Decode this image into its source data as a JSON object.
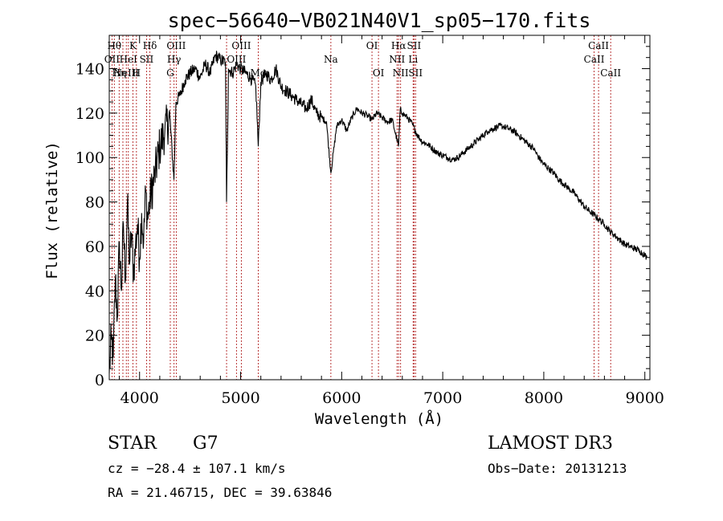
{
  "chart_data": {
    "type": "line",
    "title": "spec−56640−VB021N40V1_sp05−170.fits",
    "xlabel": "Wavelength (Å)",
    "ylabel": "Flux (relative)",
    "xlim": [
      3700,
      9050
    ],
    "ylim": [
      0,
      155
    ],
    "xticks": [
      {
        "value": 4000,
        "label": "4000"
      },
      {
        "value": 5000,
        "label": "5000"
      },
      {
        "value": 6000,
        "label": "6000"
      },
      {
        "value": 7000,
        "label": "7000"
      },
      {
        "value": 8000,
        "label": "8000"
      },
      {
        "value": 9000,
        "label": "9000"
      }
    ],
    "yticks": [
      {
        "value": 0,
        "label": "0"
      },
      {
        "value": 20,
        "label": "20"
      },
      {
        "value": 40,
        "label": "40"
      },
      {
        "value": 60,
        "label": "60"
      },
      {
        "value": 80,
        "label": "80"
      },
      {
        "value": 100,
        "label": "100"
      },
      {
        "value": 120,
        "label": "120"
      },
      {
        "value": 140,
        "label": "140"
      }
    ],
    "series": [
      {
        "name": "spectrum",
        "color": "#000000",
        "x": [
          3700,
          3720,
          3740,
          3760,
          3780,
          3800,
          3820,
          3840,
          3860,
          3880,
          3900,
          3920,
          3940,
          3960,
          3980,
          4000,
          4020,
          4040,
          4060,
          4080,
          4100,
          4150,
          4200,
          4250,
          4300,
          4340,
          4360,
          4400,
          4450,
          4500,
          4550,
          4600,
          4650,
          4700,
          4750,
          4800,
          4850,
          4861,
          4880,
          4920,
          4960,
          5000,
          5050,
          5100,
          5150,
          5175,
          5200,
          5250,
          5300,
          5350,
          5400,
          5450,
          5500,
          5550,
          5600,
          5650,
          5700,
          5750,
          5800,
          5850,
          5893,
          5950,
          6000,
          6050,
          6100,
          6150,
          6200,
          6250,
          6300,
          6350,
          6400,
          6450,
          6500,
          6563,
          6580,
          6600,
          6650,
          6700,
          6750,
          6800,
          6850,
          6900,
          6950,
          7000,
          7050,
          7100,
          7150,
          7200,
          7250,
          7300,
          7350,
          7400,
          7450,
          7500,
          7550,
          7600,
          7650,
          7700,
          7750,
          7800,
          7850,
          7900,
          7950,
          8000,
          8050,
          8100,
          8150,
          8200,
          8250,
          8300,
          8350,
          8400,
          8450,
          8500,
          8550,
          8600,
          8650,
          8700,
          8750,
          8800,
          8850,
          8900,
          8950,
          9000,
          9020
        ],
        "y": [
          3,
          18,
          10,
          45,
          28,
          62,
          40,
          70,
          45,
          80,
          52,
          66,
          48,
          60,
          70,
          55,
          75,
          62,
          85,
          72,
          80,
          92,
          105,
          112,
          118,
          90,
          125,
          128,
          135,
          138,
          140,
          136,
          142,
          138,
          146,
          144,
          143,
          80,
          140,
          138,
          142,
          140,
          138,
          136,
          132,
          105,
          134,
          138,
          135,
          140,
          132,
          130,
          128,
          126,
          124,
          122,
          126,
          120,
          118,
          116,
          93,
          114,
          117,
          112,
          118,
          122,
          120,
          119,
          117,
          120,
          118,
          116,
          117,
          105,
          122,
          120,
          118,
          115,
          110,
          107,
          106,
          104,
          102,
          101,
          100,
          99,
          100,
          102,
          104,
          106,
          108,
          110,
          112,
          113,
          114,
          114,
          113,
          112,
          110,
          108,
          106,
          104,
          100,
          97,
          95,
          93,
          90,
          88,
          86,
          84,
          81,
          78,
          76,
          74,
          72,
          70,
          67,
          65,
          63,
          61,
          60,
          59,
          58,
          56,
          55
        ]
      }
    ],
    "emission_lines": [
      {
        "wave": 3727,
        "label": "OII",
        "row": 1
      },
      {
        "wave": 3750,
        "label": "Hθ",
        "row": 0
      },
      {
        "wave": 3798,
        "label": "Hη",
        "row": 2
      },
      {
        "wave": 3835,
        "label": "",
        "row": 2
      },
      {
        "wave": 3869,
        "label": "NeIII",
        "row": 2
      },
      {
        "wave": 3889,
        "label": "HeI",
        "row": 1
      },
      {
        "wave": 3934,
        "label": "K",
        "row": 0
      },
      {
        "wave": 3969,
        "label": "H",
        "row": 2
      },
      {
        "wave": 4069,
        "label": "SII",
        "row": 1
      },
      {
        "wave": 4102,
        "label": "Hδ",
        "row": 0
      },
      {
        "wave": 4304,
        "label": "G",
        "row": 2
      },
      {
        "wave": 4341,
        "label": "Hγ",
        "row": 1
      },
      {
        "wave": 4363,
        "label": "OIII",
        "row": 0
      },
      {
        "wave": 4861,
        "label": "",
        "row": 2
      },
      {
        "wave": 4959,
        "label": "OIII",
        "row": 1
      },
      {
        "wave": 5007,
        "label": "OIII",
        "row": 0
      },
      {
        "wave": 5175,
        "label": "Mg",
        "row": 2
      },
      {
        "wave": 5893,
        "label": "Na",
        "row": 1
      },
      {
        "wave": 6300,
        "label": "OI",
        "row": 0
      },
      {
        "wave": 6364,
        "label": "OI",
        "row": 2
      },
      {
        "wave": 6548,
        "label": "NII",
        "row": 1
      },
      {
        "wave": 6563,
        "label": "Hα",
        "row": 0
      },
      {
        "wave": 6583,
        "label": "NII",
        "row": 2
      },
      {
        "wave": 6707,
        "label": "Li",
        "row": 1
      },
      {
        "wave": 6716,
        "label": "SII",
        "row": 0
      },
      {
        "wave": 6731,
        "label": "SII",
        "row": 2
      },
      {
        "wave": 8498,
        "label": "CaII",
        "row": 1
      },
      {
        "wave": 8542,
        "label": "CaII",
        "row": 0
      },
      {
        "wave": 8662,
        "label": "CaII",
        "row": 2
      }
    ]
  },
  "info": {
    "object_class": "STAR",
    "subclass": "G7",
    "survey": "LAMOST DR3",
    "redshift": "cz = −28.4 ± 107.1 km/s",
    "obs_date": "Obs−Date: 20131213",
    "coords": "RA =  21.46715, DEC =  39.63846"
  }
}
